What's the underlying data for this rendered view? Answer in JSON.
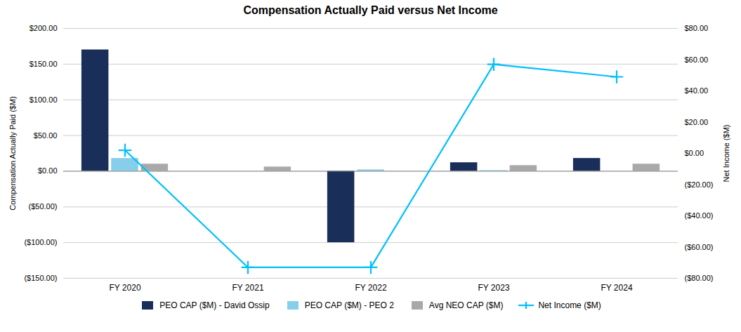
{
  "chart_data": {
    "type": "bar",
    "title": "Compensation Actually Paid versus Net Income",
    "categories": [
      "FY 2020",
      "FY 2021",
      "FY 2022",
      "FY 2023",
      "FY 2024"
    ],
    "series": [
      {
        "name": "PEO CAP ($M) - David Ossip",
        "color": "#1a2e5a",
        "values": [
          170,
          0,
          -100,
          12,
          18
        ]
      },
      {
        "name": "PEO CAP ($M) - PEO 2",
        "color": "#87ceeb",
        "values": [
          18,
          0,
          2,
          1,
          0
        ]
      },
      {
        "name": "Avg NEO CAP ($M)",
        "color": "#a9a9a9",
        "values": [
          10,
          6,
          0,
          8,
          10
        ]
      },
      {
        "name": "Net Income ($M)",
        "color": "#00bfff",
        "values": [
          2,
          -73,
          -73,
          57,
          49
        ],
        "type": "line",
        "axis": "y2",
        "marker": "plus"
      }
    ],
    "ylabel": "Compensation Actually Paid ($M)",
    "y2label": "Net Income ($M)",
    "ylim": [
      -150,
      200
    ],
    "yticks": [
      {
        "value": -150,
        "label": "($150.00)"
      },
      {
        "value": -100,
        "label": "($100.00)"
      },
      {
        "value": -50,
        "label": "($50.00)"
      },
      {
        "value": 0,
        "label": "$0.00"
      },
      {
        "value": 50,
        "label": "$50.00"
      },
      {
        "value": 100,
        "label": "$100.00"
      },
      {
        "value": 150,
        "label": "$150.00"
      },
      {
        "value": 200,
        "label": "$200.00"
      }
    ],
    "y2lim": [
      -80,
      80
    ],
    "y2ticks": [
      {
        "value": -80,
        "label": "($80.00)"
      },
      {
        "value": -60,
        "label": "($60.00)"
      },
      {
        "value": -40,
        "label": "($40.00)"
      },
      {
        "value": -20,
        "label": "($20.00)"
      },
      {
        "value": 0,
        "label": "$0.00"
      },
      {
        "value": 20,
        "label": "$20.00"
      },
      {
        "value": 40,
        "label": "$40.00"
      },
      {
        "value": 60,
        "label": "$60.00"
      },
      {
        "value": 80,
        "label": "$80.00"
      }
    ],
    "grid": true,
    "legend": "bottom"
  }
}
